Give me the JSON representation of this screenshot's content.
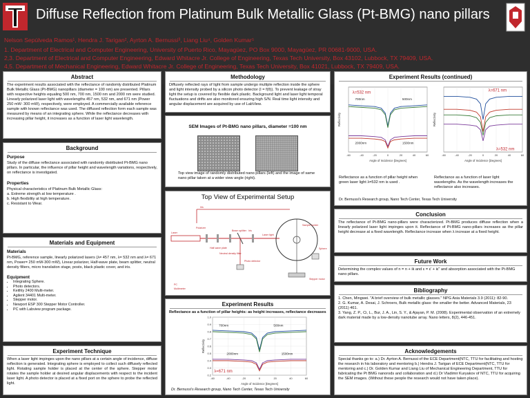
{
  "header": {
    "title": "Diffuse Reflection from Platinum Bulk Metallic Glass (Pt-BMG) nano pillars",
    "authors": "Nelson Sepúlveda Ramos¹, Hendra J. Tarigan², Ayrton A. Bernussi³, Liang Liu⁴, Golden Kumar⁵",
    "affiliations": [
      "1. Department of Electrical and Computer Engineering, University of Puerto Rico, Mayagüez, PO Box 9000, Mayagüez, PR 00681-9000, USA.",
      "2,3. Department of Electrical and Computer Engineering, Edward Whitacre Jr. College of Engineering, Texas Tech University, Box 43102, Lubbock, TX 79409, USA.",
      "4,5. Department of Mechanical Engineering, Edward Whitacre Jr. College of Engineering, Texas Tech University, Box 41021, Lubbock, TX 79409, USA."
    ]
  },
  "abstract": {
    "title": "Abstract",
    "text": "The experiment results associated with the reflectance of randomly distributed Platinum Bulk Metallic Glass (Pt-BMG) nanopillars (diameter = 100 nm) are presented. Pillars with respective heights equaling 500 nm, 700 nm, 1500 nm and 2000 nm were studied. Linearly polarized laser light with wavelengths 457 nm, 532 nm, and 671 nm (Power 250 mW- 300 mW), respectively, were employed. A commercially available reference sample with known reflectance was used. The diffused reflection form each sample was measured by means of an integrating sphere. While the reflectance decreases with increasing pillar height, it increases as a function of laser light wavelength."
  },
  "background": {
    "title": "Background",
    "purpose_title": "Purpose",
    "purpose_text": "Study of the diffuse reflectance associated with randomly distributed Pt-BMG nano pillars. In particular, the influence of pillar height and wavelength variations, respectively, on reflectance is investigated.",
    "properties_title": "Properties",
    "properties_lines": [
      "Physical characteristics of Platinum Bulk Metallic Glass:",
      "a. Extreme strength at low temperature .",
      "b. High flexibility at high temperature.",
      "c. Resistant to Wear."
    ]
  },
  "materials": {
    "title": "Materials and Equipment",
    "materials_title": "Materials",
    "materials_text": "Pt-BMG, reference sample, linearly polarized lasers (λ= 457 nm, λ= 532 nm and λ= 671 nm, Power= 250 mW-300 mW), Linear polarizer, Half-wave plate, beam splitter, neutral density filters, micro translation stage, posts, black plastic cover, and iris.",
    "equipment_title": "Equipment",
    "equipment_items": [
      "Integrating Sphere.",
      "Photo detectors.",
      "Keithly 2400 Multi-meter.",
      "Agilent 34401 Multi-meter.",
      "Stepper motor.",
      "Newport ESP 300 Stepper Motor Controller.",
      "PC with Labview program package."
    ]
  },
  "technique": {
    "title": "Experiment Technique",
    "text": "When a laser light impinges upon the nano pillars at a certain angle of incidence, diffuse reflection is generated. Integrating sphere is employed to collect such diffusely reflected light. Rotating sample holder is placed at the center of the sphere. Stepper motor rotates the sample holder at desired angular displacements with respect to the incident laser light. A photo detector is placed at a fixed port on the sphere to probe the reflected light."
  },
  "methodology": {
    "title": "Methodology",
    "text": "Diffusely reflected rays of light from sample undergo multiple reflection inside the sphere and light intensity probed by a silicon photo detector (I = f(θ)). To prevent leakage of stray light the setup is covered by flexible dark plastic. Background light and laser light temporal fluctuations and drifts are also monitored ensuring high S/N. Real time light intensity and angular displacement are acquired by use of LabView."
  },
  "sem": {
    "title": "SEM Images of Pt-BMG nano pillars, diameter =100 nm",
    "caption": "Top view image of randomly distributed nano pillars (left) and the image of same nano pillar taken at a wider view angle (right)."
  },
  "setup": {
    "title": "Top View of Experimental Setup",
    "labels": [
      "Iris",
      "Iris",
      "Sample holder",
      "Laser",
      "Beam splitter",
      "Polarizer",
      "Half-wave plate",
      "Neutral density filter",
      "Photo detector",
      "Stepper motor",
      "Sphere",
      "PC",
      "Laser light",
      "Multimeter"
    ]
  },
  "results": {
    "title": "Experiment Results",
    "subtitle": "Reflectance as a function of pillar heights: as height increases, reflectance decreases",
    "footer": "Dr. Bernussi's Research group, Nano Tech Center, Texas Tech University"
  },
  "results2": {
    "title": "Experiment Results (continued)",
    "caption_left": "Reflectance as a function of pillar height when green laser light λ=532 nm is used .",
    "caption_right": "Reflectance as a function of laser light wavelengths. As the wavelength increases the reflectance also increases.",
    "footer": "Dr. Bernussi's Research group, Nano Tech Center, Texas Tech University"
  },
  "conclusion": {
    "title": "Conclusion",
    "text": "The reflectance of Pt-BMG nano-pillars were characterized. Pt-BMG produces diffuse reflection when a linearly polarized laser light impinges upon it. Reflectance of Pt-BMG nano-pillars increases as the pillar height decrease at a fixed wavelength. Reflectance increase when λ increase at a fixed height."
  },
  "future": {
    "title": "Future Work",
    "text": "Determining the complex values of n = n + ik and ε = ε' + iε\" and absorption associated with the Pt-BMG nano pillars."
  },
  "bibliography": {
    "title": "Bibliography",
    "items": [
      "1. Chen, Mingwei. \"A brief overview of bulk metallic glasses.\" NPG Asia Materials 3.9 (2011): 82-90.",
      "2. G. Kumar, A. Desai, J. Schroers, Bulk metallic glass: the smaller the better. Advanced Materials, 23 (2011) 461.",
      "3. Yang, Z. P., Ci, L., Bur, J. A., Lin, S. Y., & Ajayan, P. M. (2008). Experimental observation of an extremely dark material made by a low-density nanotube array. Nano letters, 8(2), 446-451."
    ]
  },
  "ack": {
    "title": "Acknowledgements",
    "text": "Special thanks go to: a.) Dr. Ayrton A. Bernussi of the ECE Department(NTC, TTU for facilitating and hosting the research in his laboratory and mentoring b.) Hendra J. Tarigan of ECE Department(NTC, TTU for mentoring and c.) Dr. Golden Kumar and Liang Liu of Mechanical Engineering Department, TTU for fabricating the Pt BMG nanorods and collaboration and d.) Dr Vladimir Kuryakov of NTC, TTU for acquiring the SEM images. (Without these people the research would not have taken place)."
  },
  "chart_data": [
    {
      "type": "line",
      "title": "",
      "xlabel": "Angle of Incidence [Degrees]",
      "ylabel": "Reflectivity",
      "xlim": [
        -60,
        60
      ],
      "ylim": [
        0.2,
        1.0
      ],
      "x_ticks": [
        -60,
        -40,
        -20,
        0,
        20,
        40,
        60
      ],
      "y_ticks": [
        0.2,
        0.3,
        0.4,
        0.5,
        0.6,
        0.7,
        0.8,
        0.9,
        1.0
      ],
      "annotations": [
        "700nm",
        "500nm",
        "2000nm",
        "1500nm",
        "λ=671 nm"
      ],
      "series": [
        {
          "color": "#1f4e9c",
          "x": [
            -60,
            -40,
            -20,
            -10,
            -4,
            0,
            4,
            10,
            20,
            40,
            60
          ],
          "y": [
            0.82,
            0.81,
            0.8,
            0.78,
            0.72,
            0.55,
            0.72,
            0.78,
            0.8,
            0.81,
            0.82
          ]
        },
        {
          "color": "#3a7d3a",
          "x": [
            -60,
            -40,
            -20,
            -10,
            -4,
            0,
            4,
            10,
            20,
            40,
            60
          ],
          "y": [
            0.8,
            0.79,
            0.78,
            0.76,
            0.7,
            0.52,
            0.7,
            0.76,
            0.78,
            0.79,
            0.8
          ]
        },
        {
          "color": "#7a3a9a",
          "x": [
            -60,
            -40,
            -20,
            -10,
            -4,
            0,
            4,
            10,
            20,
            40,
            60
          ],
          "y": [
            0.42,
            0.42,
            0.41,
            0.4,
            0.37,
            0.28,
            0.37,
            0.4,
            0.41,
            0.42,
            0.42
          ]
        },
        {
          "color": "#c0392b",
          "x": [
            -60,
            -40,
            -20,
            -10,
            -4,
            0,
            4,
            10,
            20,
            40,
            60
          ],
          "y": [
            0.4,
            0.4,
            0.39,
            0.38,
            0.35,
            0.26,
            0.35,
            0.38,
            0.39,
            0.4,
            0.4
          ]
        }
      ]
    },
    {
      "type": "line",
      "title": "",
      "xlabel": "Angle of Incidence [Degrees]",
      "ylabel": "Reflectivity",
      "xlim": [
        -60,
        60
      ],
      "ylim": [
        0.2,
        1.0
      ],
      "x_ticks": [
        -60,
        -40,
        -20,
        0,
        20,
        40,
        60
      ],
      "annotations": [
        "700nm",
        "500nm",
        "2000nm",
        "1500nm",
        "λ=532 nm"
      ],
      "series": [
        {
          "color": "#1f4e9c",
          "x": [
            -60,
            -40,
            -20,
            -10,
            -4,
            0,
            4,
            10,
            20,
            40,
            60
          ],
          "y": [
            0.78,
            0.77,
            0.76,
            0.74,
            0.68,
            0.52,
            0.68,
            0.74,
            0.76,
            0.77,
            0.78
          ]
        },
        {
          "color": "#3a7d3a",
          "x": [
            -60,
            -40,
            -20,
            -10,
            -4,
            0,
            4,
            10,
            20,
            40,
            60
          ],
          "y": [
            0.76,
            0.75,
            0.74,
            0.72,
            0.66,
            0.5,
            0.66,
            0.72,
            0.74,
            0.75,
            0.76
          ]
        },
        {
          "color": "#7a3a9a",
          "x": [
            -60,
            -40,
            -20,
            -10,
            -4,
            0,
            4,
            10,
            20,
            40,
            60
          ],
          "y": [
            0.4,
            0.4,
            0.39,
            0.38,
            0.35,
            0.27,
            0.35,
            0.38,
            0.39,
            0.4,
            0.4
          ]
        },
        {
          "color": "#c0392b",
          "x": [
            -60,
            -40,
            -20,
            -10,
            -4,
            0,
            4,
            10,
            20,
            40,
            60
          ],
          "y": [
            0.37,
            0.37,
            0.36,
            0.35,
            0.33,
            0.25,
            0.33,
            0.35,
            0.36,
            0.37,
            0.37
          ]
        }
      ]
    },
    {
      "type": "line",
      "title": "",
      "xlabel": "Angle of Incidence [Degrees]",
      "ylabel": "Reflectivity",
      "xlim": [
        -60,
        60
      ],
      "ylim": [
        0.2,
        0.9
      ],
      "x_ticks": [
        -60,
        -40,
        -20,
        0,
        20,
        40,
        60
      ],
      "annotations": [
        "λ=671 nm",
        "λ=532 nm"
      ],
      "series": [
        {
          "color": "#1f4e9c",
          "x": [
            -60,
            -40,
            -20,
            -10,
            -4,
            0,
            4,
            10,
            20,
            40,
            60
          ],
          "y": [
            0.8,
            0.8,
            0.79,
            0.77,
            0.72,
            0.55,
            0.72,
            0.77,
            0.79,
            0.8,
            0.8
          ]
        },
        {
          "color": "#c0392b",
          "x": [
            -60,
            -40,
            -20,
            -10,
            -4,
            0,
            4,
            10,
            20,
            40,
            60
          ],
          "y": [
            0.66,
            0.66,
            0.65,
            0.63,
            0.58,
            0.42,
            0.58,
            0.63,
            0.65,
            0.66,
            0.66
          ]
        },
        {
          "color": "#3a7d3a",
          "x": [
            -60,
            -40,
            -20,
            -10,
            -4,
            0,
            4,
            10,
            20,
            40,
            60
          ],
          "y": [
            0.6,
            0.6,
            0.59,
            0.57,
            0.52,
            0.38,
            0.52,
            0.57,
            0.59,
            0.6,
            0.6
          ]
        },
        {
          "color": "#7a3a9a",
          "x": [
            -60,
            -40,
            -20,
            -10,
            -4,
            0,
            4,
            10,
            20,
            40,
            60
          ],
          "y": [
            0.5,
            0.5,
            0.49,
            0.48,
            0.44,
            0.32,
            0.44,
            0.48,
            0.49,
            0.5,
            0.5
          ]
        }
      ]
    }
  ]
}
